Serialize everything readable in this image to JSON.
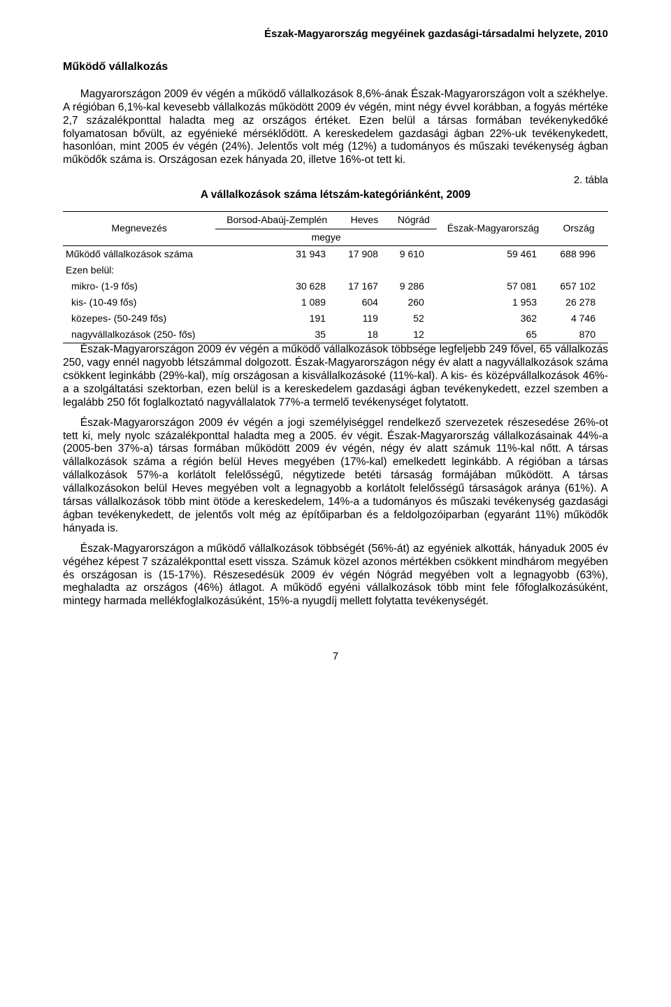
{
  "running_head": "Észak-Magyarország megyéinek gazdasági-társadalmi helyzete, 2010",
  "section_title": "Működő vállalkozás",
  "para1": "Magyarországon 2009 év végén a működő vállalkozások 8,6%-ának Észak-Magyarországon volt a székhelye. A régióban 6,1%-kal kevesebb vállalkozás működött 2009 év végén, mint négy évvel korábban, a fogyás mértéke 2,7 százalékponttal haladta meg az országos értéket. Ezen belül a társas formában tevékenykedőké folyamatosan bővült, az egyénieké mérséklődött. A kereskedelem gazdasági ágban 22%-uk tevékenykedett, hasonlóan, mint 2005 év végén (24%). Jelentős volt még (12%) a tudományos és műszaki tevékenység ágban működők száma is. Országosan ezek hányada 20, illetve 16%-ot tett ki.",
  "table_label": "2. tábla",
  "table_title": "A vállalkozások száma létszám-kategóriánként, 2009",
  "table": {
    "type": "table",
    "head_left": "Megnevezés",
    "col_megye_label": "megye",
    "columns": [
      "Borsod-Abaúj-Zemplén",
      "Heves",
      "Nógrád",
      "Észak-Magyarország",
      "Ország"
    ],
    "rows": [
      {
        "label": "Működő vállalkozások száma",
        "indent": false,
        "vals": [
          "31 943",
          "17 908",
          "9 610",
          "59 461",
          "688 996"
        ]
      },
      {
        "label": "Ezen belül:",
        "indent": false,
        "vals": [
          "",
          "",
          "",
          "",
          ""
        ]
      },
      {
        "label": "mikro- (1-9 fős)",
        "indent": true,
        "vals": [
          "30 628",
          "17 167",
          "9 286",
          "57 081",
          "657 102"
        ]
      },
      {
        "label": "kis- (10-49 fős)",
        "indent": true,
        "vals": [
          "1 089",
          "604",
          "260",
          "1 953",
          "26 278"
        ]
      },
      {
        "label": "közepes- (50-249 fős)",
        "indent": true,
        "vals": [
          "191",
          "119",
          "52",
          "362",
          "4 746"
        ]
      },
      {
        "label": "nagyvállalkozások (250- fős)",
        "indent": true,
        "vals": [
          "35",
          "18",
          "12",
          "65",
          "870"
        ]
      }
    ],
    "border_color": "#000000",
    "font_size": 14
  },
  "para2": "Észak-Magyarországon 2009 év végén a működő vállalkozások többsége legfeljebb 249 fővel, 65 vállalkozás 250, vagy ennél nagyobb létszámmal dolgozott. Észak-Magyarországon négy év alatt a nagyvállalkozások száma csökkent leginkább (29%-kal), míg országosan a kisvállalkozásoké (11%-kal). A kis- és középvállalkozások 46%-a a szolgáltatási szektorban, ezen belül is a kereskedelem gazdasági ágban tevékenykedett, ezzel szemben a legalább 250 főt foglalkoztató nagyvállalatok 77%-a termelő tevékenységet folytatott.",
  "para3": "Észak-Magyarországon 2009 év végén a jogi személyiséggel rendelkező szervezetek részesedése 26%-ot tett ki, mely nyolc százalékponttal haladta meg a 2005. év végit. Észak-Magyarország vállalkozásainak 44%-a (2005-ben 37%-a) társas formában működött 2009 év végén, négy év alatt számuk 11%-kal nőtt. A társas vállalkozások száma a régión belül Heves megyében (17%-kal) emelkedett leginkább. A régióban a társas vállalkozások 57%-a korlátolt felelősségű, négytizede betéti társaság formájában működött. A társas vállalkozásokon belül Heves megyében volt a legnagyobb a korlátolt felelősségű társaságok aránya (61%). A társas vállalkozások több mint ötöde a kereskedelem, 14%-a a tudományos és műszaki tevékenység gazdasági ágban tevékenykedett, de jelentős volt még az építőiparban és a feldolgozóiparban (egyaránt 11%) működők hányada is.",
  "para4": "Észak-Magyarországon a működő vállalkozások többségét (56%-át) az egyéniek alkották, hányaduk 2005 év végéhez képest 7 százalékponttal esett vissza. Számuk közel azonos mértékben csökkent mindhárom megyében és országosan is (15-17%). Részesedésük 2009 év végén Nógrád megyében volt a legnagyobb (63%), meghaladta az országos (46%) átlagot. A működő egyéni vállalkozások több mint fele főfoglalkozásúként, mintegy harmada mellékfoglalkozásúként, 15%-a nyugdíj mellett folytatta tevékenységét.",
  "page_number": "7",
  "colors": {
    "text": "#000000",
    "background": "#ffffff",
    "rule": "#000000"
  }
}
